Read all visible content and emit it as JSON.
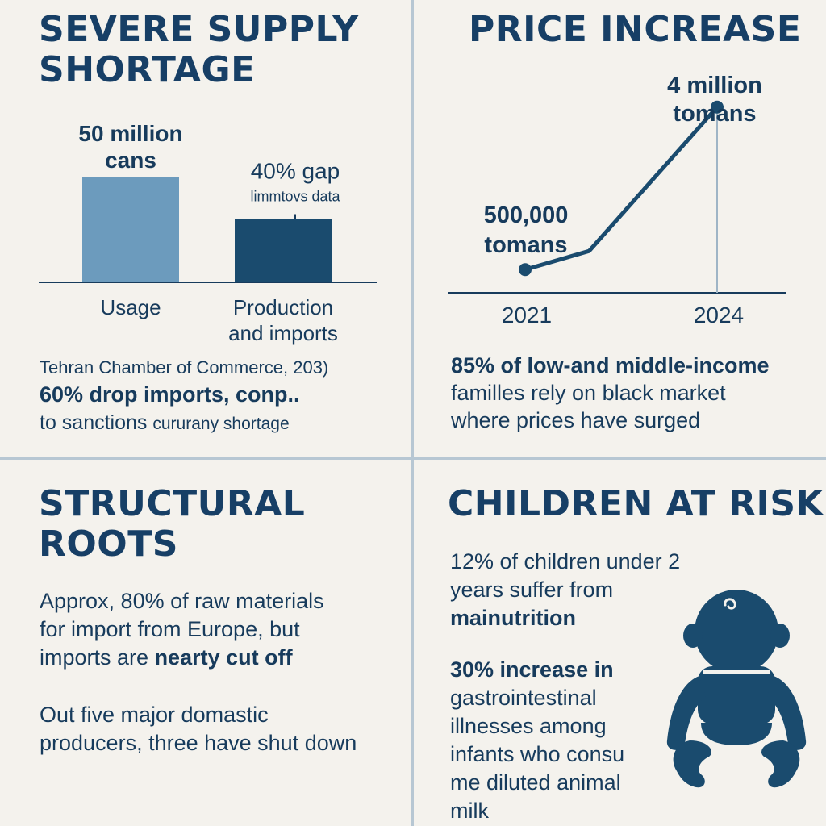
{
  "colors": {
    "primary": "#1a4b6e",
    "light_bar": "#6c9bbd",
    "background": "#f4f2ed",
    "divider": "#b7c7d3"
  },
  "panels": {
    "supply": {
      "title_line1": "SEVERE SUPPLY",
      "title_line2": "SHORTAGE",
      "source_line": "Tehran Chamber of Commerce, 203)",
      "note_line1": "60% drop imports, conp..",
      "note_line2_a": "to sanctions",
      "note_line2_b": "cururany shortage"
    },
    "price": {
      "title": "PRICE INCREASE",
      "note_line1": "85% of low-and middle-income",
      "note_line2": "familles rely on black market",
      "note_line3": "where prices have surged"
    },
    "roots": {
      "title_line1": "STRUCTURAL",
      "title_line2": "ROOTS",
      "para1_line1": "Approx, 80% of raw materials",
      "para1_line2": "for import from Europe, but",
      "para1_line3_a": "imports are",
      "para1_line3_b": "nearty cut off",
      "para2_line1": "Out five major domastic",
      "para2_line2": "producers, three have shut down"
    },
    "children": {
      "title": "CHILDREN AT RISK",
      "stat1_line1": "12% of children under 2",
      "stat1_line2": "years suffer from",
      "stat1_line3": "mainutrition",
      "stat2_line1": "30% increase in",
      "stat2_line2": "gastrointestinal",
      "stat2_line3": "illnesses among",
      "stat2_line4": "infants who consu",
      "stat2_line5": "me diluted animal",
      "stat2_line6": "milk",
      "icon": "baby-icon"
    }
  },
  "chart_data": [
    {
      "type": "bar",
      "categories": [
        "Usage",
        "Production and imports"
      ],
      "category_lines": [
        [
          "Usage"
        ],
        [
          "Production",
          "and imports"
        ]
      ],
      "values": [
        50,
        30
      ],
      "ylim": [
        0,
        60
      ],
      "value_labels": [
        [
          "50 million",
          "cans"
        ],
        [
          "40% gap"
        ]
      ],
      "sub_label": "limmtovs data",
      "grid": false
    },
    {
      "type": "line",
      "x": [
        2021,
        2022,
        2024
      ],
      "y": [
        500000,
        900000,
        4000000
      ],
      "ticks": [
        "2021",
        "2024"
      ],
      "ylim": [
        0,
        4500000
      ],
      "point_labels": [
        [
          "500,000",
          "tomans"
        ],
        [
          "4 million",
          "tomans"
        ]
      ],
      "grid": false
    }
  ]
}
